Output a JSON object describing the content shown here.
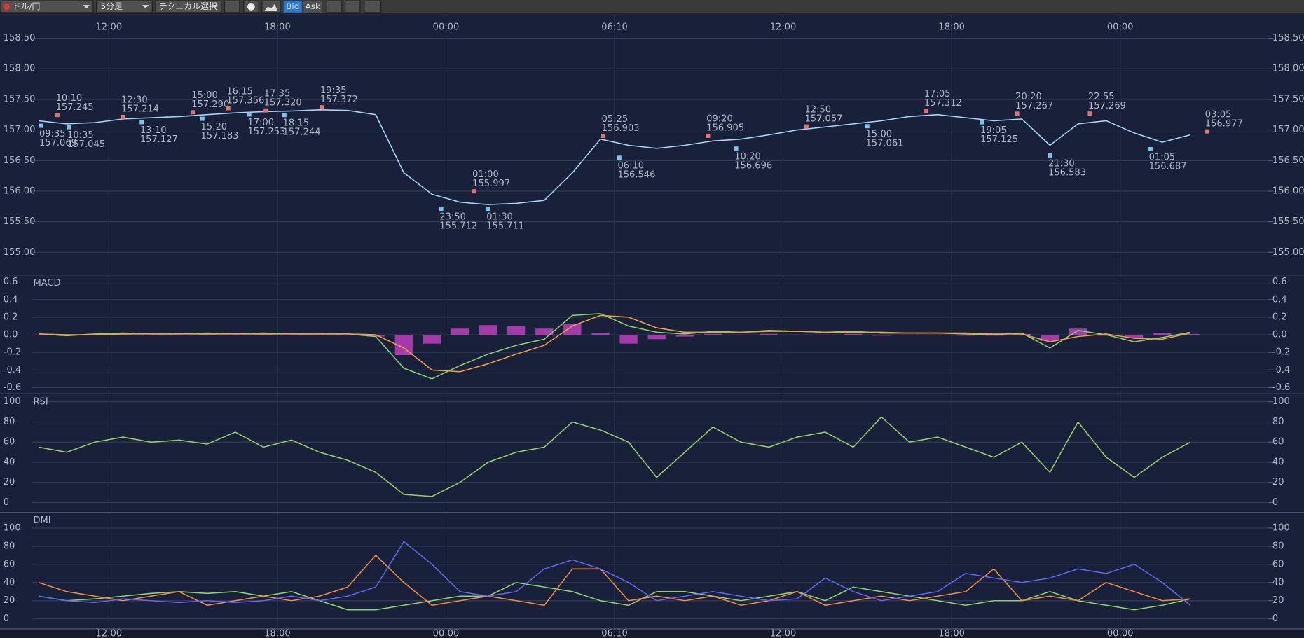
{
  "toolbar": {
    "pair": "ドル/円",
    "interval": "5分足",
    "technical": "テクニカル選択",
    "bid": "Bid",
    "ask": "Ask"
  },
  "chart_data": [
    {
      "type": "line",
      "x": [
        -2.5,
        -1.5,
        -0.5,
        0.5,
        1.5,
        2.5,
        3.5,
        4.5,
        5.5,
        6.5,
        7.5,
        8.5,
        9.5,
        10.5,
        11.5,
        12.5,
        13.5,
        14.5,
        15.5,
        16.5,
        17.5,
        18.5,
        19.5,
        20.5,
        21.5,
        22.5,
        23.5,
        24.5,
        25.5,
        26.5,
        27.5,
        28.5,
        29.5,
        30.5,
        31.5,
        32.5,
        33.5,
        34.5,
        35.5,
        36.5,
        37.5,
        38.5
      ],
      "xlim": [
        -2.75,
        41.27
      ],
      "xticks": [
        {
          "value": 0,
          "label": "12:00"
        },
        {
          "value": 6,
          "label": "18:00"
        },
        {
          "value": 12,
          "label": "00:00"
        },
        {
          "value": 18,
          "label": "06:10"
        },
        {
          "value": 24,
          "label": "12:00"
        },
        {
          "value": 30,
          "label": "18:00"
        },
        {
          "value": 36,
          "label": "00:00"
        }
      ],
      "ylim": [
        154.63,
        158.88
      ],
      "yticks": [
        {
          "value": 158.5,
          "label": "158.50"
        },
        {
          "value": 158,
          "label": "158.00"
        },
        {
          "value": 157.5,
          "label": "157.50"
        },
        {
          "value": 157,
          "label": "157.00"
        },
        {
          "value": 156.5,
          "label": "156.50"
        },
        {
          "value": 156,
          "label": "156.00"
        },
        {
          "value": 155.5,
          "label": "155.50"
        },
        {
          "value": 155,
          "label": "155.00"
        }
      ],
      "series": [
        {
          "color": "#a8d8f0",
          "values": [
            157.15,
            157.1,
            157.12,
            157.18,
            157.2,
            157.22,
            157.25,
            157.28,
            157.3,
            157.31,
            157.33,
            157.32,
            157.25,
            156.3,
            155.95,
            155.82,
            155.78,
            155.8,
            155.85,
            156.3,
            156.85,
            156.75,
            156.7,
            156.75,
            156.82,
            156.85,
            156.92,
            157.0,
            157.05,
            157.1,
            157.15,
            157.22,
            157.25,
            157.2,
            157.15,
            157.18,
            156.75,
            157.1,
            157.15,
            156.95,
            156.8,
            156.92
          ]
        }
      ],
      "annotations": [
        {
          "x": -1.83,
          "y": 157.245,
          "time": "10:10",
          "label": "157.245",
          "color": "#e87070",
          "placement": "above"
        },
        {
          "x": 0.5,
          "y": 157.214,
          "time": "12:30",
          "label": "157.214",
          "color": "#e87070",
          "placement": "above"
        },
        {
          "x": 3,
          "y": 157.29,
          "time": "15:00",
          "label": "157.290",
          "color": "#e87070",
          "placement": "above"
        },
        {
          "x": 4.25,
          "y": 157.356,
          "time": "16:15",
          "label": "157.356",
          "color": "#e87070",
          "placement": "above"
        },
        {
          "x": 5.58,
          "y": 157.32,
          "time": "17:35",
          "label": "157.320",
          "color": "#e87070",
          "placement": "above"
        },
        {
          "x": 7.58,
          "y": 157.372,
          "time": "19:35",
          "label": "157.372",
          "color": "#e87070",
          "placement": "above"
        },
        {
          "x": 13,
          "y": 155.997,
          "time": "01:00",
          "label": "155.997",
          "color": "#e87070",
          "placement": "above"
        },
        {
          "x": 17.6,
          "y": 156.903,
          "time": "05:25",
          "label": "156.903",
          "color": "#e87070",
          "placement": "above"
        },
        {
          "x": 21.33,
          "y": 156.905,
          "time": "09:20",
          "label": "156.905",
          "color": "#e87070",
          "placement": "above"
        },
        {
          "x": 24.83,
          "y": 157.057,
          "time": "12:50",
          "label": "157.057",
          "color": "#e87070",
          "placement": "above"
        },
        {
          "x": 29.08,
          "y": 157.312,
          "time": "17:05",
          "label": "157.312",
          "color": "#e87070",
          "placement": "above"
        },
        {
          "x": 32.33,
          "y": 157.267,
          "time": "20:20",
          "label": "157.267",
          "color": "#e87070",
          "placement": "above"
        },
        {
          "x": 34.92,
          "y": 157.269,
          "time": "22:55",
          "label": "157.269",
          "color": "#e87070",
          "placement": "above"
        },
        {
          "x": 39.08,
          "y": 156.977,
          "time": "03:05",
          "label": "156.977",
          "color": "#e87070",
          "placement": "above"
        },
        {
          "x": -2.42,
          "y": 157.069,
          "time": "09:35",
          "label": "157.069",
          "color": "#7cc4ec",
          "placement": "below"
        },
        {
          "x": -1.42,
          "y": 157.045,
          "time": "10:35",
          "label": "157.045",
          "color": "#7cc4ec",
          "placement": "below"
        },
        {
          "x": 1.17,
          "y": 157.127,
          "time": "13:10",
          "label": "157.127",
          "color": "#7cc4ec",
          "placement": "below"
        },
        {
          "x": 3.33,
          "y": 157.183,
          "time": "15:20",
          "label": "157.183",
          "color": "#7cc4ec",
          "placement": "below"
        },
        {
          "x": 5,
          "y": 157.253,
          "time": "17:00",
          "label": "157.253",
          "color": "#7cc4ec",
          "placement": "below"
        },
        {
          "x": 6.25,
          "y": 157.244,
          "time": "18:15",
          "label": "157.244",
          "color": "#7cc4ec",
          "placement": "below"
        },
        {
          "x": 11.83,
          "y": 155.712,
          "time": "23:50",
          "label": "155.712",
          "color": "#7cc4ec",
          "placement": "below"
        },
        {
          "x": 13.5,
          "y": 155.711,
          "time": "01:30",
          "label": "155.711",
          "color": "#7cc4ec",
          "placement": "below"
        },
        {
          "x": 18.17,
          "y": 156.546,
          "time": "06:10",
          "label": "156.546",
          "color": "#7cc4ec",
          "placement": "below"
        },
        {
          "x": 22.33,
          "y": 156.696,
          "time": "10:20",
          "label": "156.696",
          "color": "#7cc4ec",
          "placement": "below"
        },
        {
          "x": 27,
          "y": 157.061,
          "time": "15:00",
          "label": "157.061",
          "color": "#7cc4ec",
          "placement": "below"
        },
        {
          "x": 31.08,
          "y": 157.125,
          "time": "19:05",
          "label": "157.125",
          "color": "#7cc4ec",
          "placement": "below"
        },
        {
          "x": 33.5,
          "y": 156.583,
          "time": "21:30",
          "label": "156.583",
          "color": "#7cc4ec",
          "placement": "below"
        },
        {
          "x": 37.08,
          "y": 156.687,
          "time": "01:05",
          "label": "156.687",
          "color": "#7cc4ec",
          "placement": "below"
        }
      ]
    },
    {
      "type": "line",
      "title": "MACD",
      "x": [
        -2.5,
        -1.5,
        -0.5,
        0.5,
        1.5,
        2.5,
        3.5,
        4.5,
        5.5,
        6.5,
        7.5,
        8.5,
        9.5,
        10.5,
        11.5,
        12.5,
        13.5,
        14.5,
        15.5,
        16.5,
        17.5,
        18.5,
        19.5,
        20.5,
        21.5,
        22.5,
        23.5,
        24.5,
        25.5,
        26.5,
        27.5,
        28.5,
        29.5,
        30.5,
        31.5,
        32.5,
        33.5,
        34.5,
        35.5,
        36.5,
        37.5,
        38.5
      ],
      "ylim": [
        -0.67,
        0.68
      ],
      "yticks": [
        0.6,
        0.4,
        0.2,
        {
          "value": 0,
          "label": "0.0"
        },
        -0.2,
        -0.4,
        -0.6
      ],
      "series": [
        {
          "type": "bar",
          "color": "#c040c0",
          "values": [
            0,
            -0.01,
            0.01,
            0.01,
            0,
            0,
            0.01,
            0,
            0.01,
            0,
            0,
            0,
            -0.02,
            -0.23,
            -0.1,
            0.07,
            0.11,
            0.1,
            0.07,
            0.12,
            0.02,
            -0.1,
            -0.05,
            -0.02,
            0.01,
            0,
            0.01,
            0,
            0,
            0.01,
            -0.01,
            0,
            0,
            -0.01,
            -0.01,
            0.01,
            -0.07,
            0.07,
            -0.01,
            -0.04,
            0.02,
            0.01
          ]
        },
        {
          "color": "#8fd16a",
          "values": [
            0.01,
            -0.01,
            0.01,
            0.02,
            0.01,
            0.01,
            0.02,
            0.01,
            0.02,
            0.01,
            0.01,
            0.01,
            -0.02,
            -0.38,
            -0.5,
            -0.35,
            -0.22,
            -0.12,
            -0.05,
            0.22,
            0.24,
            0.1,
            0.03,
            0.01,
            0.04,
            0.03,
            0.05,
            0.04,
            0.03,
            0.04,
            0.02,
            0.02,
            0.02,
            0.01,
            0.0,
            0.02,
            -0.15,
            0.05,
            0.0,
            -0.08,
            -0.03,
            0.03
          ]
        },
        {
          "color": "#f0a040",
          "values": [
            0.01,
            0.0,
            0.0,
            0.01,
            0.01,
            0.01,
            0.01,
            0.01,
            0.01,
            0.01,
            0.01,
            0.01,
            0.0,
            -0.15,
            -0.4,
            -0.42,
            -0.33,
            -0.22,
            -0.12,
            0.1,
            0.22,
            0.2,
            0.08,
            0.03,
            0.03,
            0.03,
            0.04,
            0.04,
            0.03,
            0.03,
            0.03,
            0.02,
            0.02,
            0.02,
            0.01,
            0.01,
            -0.08,
            -0.02,
            0.01,
            -0.04,
            -0.05,
            0.02
          ]
        }
      ]
    },
    {
      "type": "line",
      "title": "RSI",
      "x": [
        -2.5,
        -1.5,
        -0.5,
        0.5,
        1.5,
        2.5,
        3.5,
        4.5,
        5.5,
        6.5,
        7.5,
        8.5,
        9.5,
        10.5,
        11.5,
        12.5,
        13.5,
        14.5,
        15.5,
        16.5,
        17.5,
        18.5,
        19.5,
        20.5,
        21.5,
        22.5,
        23.5,
        24.5,
        25.5,
        26.5,
        27.5,
        28.5,
        29.5,
        30.5,
        31.5,
        32.5,
        33.5,
        34.5,
        35.5,
        36.5,
        37.5,
        38.5
      ],
      "ylim": [
        -10,
        108
      ],
      "yticks": [
        100,
        80,
        60,
        40,
        20,
        0
      ],
      "series": [
        {
          "color": "#9ccc65",
          "values": [
            55,
            50,
            60,
            65,
            60,
            62,
            58,
            70,
            55,
            62,
            50,
            42,
            30,
            8,
            6,
            20,
            40,
            50,
            55,
            80,
            72,
            60,
            25,
            50,
            75,
            60,
            55,
            65,
            70,
            55,
            85,
            60,
            65,
            55,
            45,
            60,
            30,
            80,
            45,
            25,
            45,
            60
          ]
        }
      ]
    },
    {
      "type": "line",
      "title": "DMI",
      "x": [
        -2.5,
        -1.5,
        -0.5,
        0.5,
        1.5,
        2.5,
        3.5,
        4.5,
        5.5,
        6.5,
        7.5,
        8.5,
        9.5,
        10.5,
        11.5,
        12.5,
        13.5,
        14.5,
        15.5,
        16.5,
        17.5,
        18.5,
        19.5,
        20.5,
        21.5,
        22.5,
        23.5,
        24.5,
        25.5,
        26.5,
        27.5,
        28.5,
        29.5,
        30.5,
        31.5,
        32.5,
        33.5,
        34.5,
        35.5,
        36.5,
        37.5,
        38.5
      ],
      "ylim": [
        -11,
        117
      ],
      "yticks": [
        100,
        80,
        60,
        40,
        20,
        0
      ],
      "series": [
        {
          "color": "#8fd16a",
          "values": [
            25,
            20,
            22,
            25,
            28,
            30,
            28,
            30,
            25,
            30,
            20,
            10,
            10,
            15,
            20,
            25,
            25,
            40,
            35,
            30,
            20,
            15,
            30,
            30,
            25,
            20,
            25,
            30,
            20,
            35,
            30,
            25,
            20,
            15,
            20,
            20,
            30,
            20,
            15,
            10,
            15,
            22
          ]
        },
        {
          "color": "#f08c40",
          "values": [
            40,
            30,
            25,
            20,
            25,
            30,
            15,
            20,
            25,
            20,
            25,
            35,
            70,
            40,
            15,
            20,
            25,
            20,
            15,
            55,
            55,
            20,
            25,
            20,
            25,
            15,
            20,
            30,
            15,
            20,
            25,
            20,
            25,
            30,
            55,
            20,
            25,
            20,
            40,
            30,
            20,
            22
          ]
        },
        {
          "color": "#6464f0",
          "values": [
            25,
            20,
            18,
            22,
            20,
            18,
            20,
            18,
            20,
            25,
            20,
            25,
            35,
            85,
            60,
            30,
            25,
            30,
            55,
            65,
            55,
            40,
            20,
            25,
            30,
            25,
            20,
            22,
            45,
            30,
            20,
            25,
            30,
            50,
            45,
            40,
            45,
            55,
            50,
            60,
            40,
            15
          ]
        }
      ]
    }
  ]
}
